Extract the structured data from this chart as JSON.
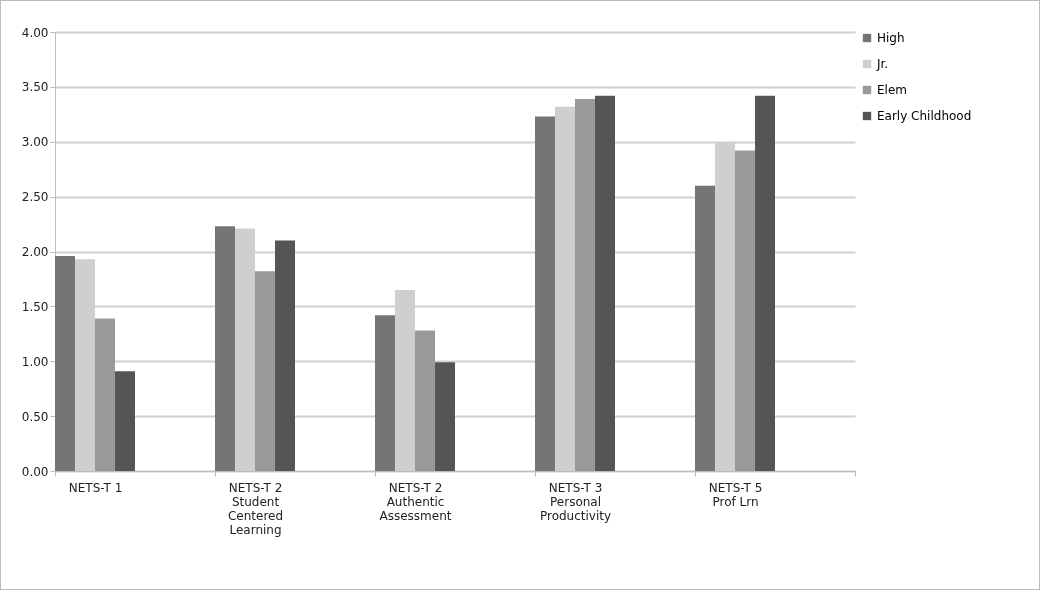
{
  "chart_data": {
    "type": "bar",
    "categories": [
      "NETS-T 1",
      "NETS-T 2\nStudent\nCentered\nLearning",
      "NETS-T 2\nAuthentic\nAssessment",
      "NETS-T 3\nPersonal\nProductivity",
      "NETS-T 5\nProf Lrn"
    ],
    "series": [
      {
        "name": "High",
        "color": "#757575",
        "values": [
          1.96,
          2.23,
          1.42,
          3.23,
          2.6
        ]
      },
      {
        "name": "Jr.",
        "color": "#cfcfcf",
        "values": [
          1.93,
          2.21,
          1.65,
          3.32,
          2.99
        ]
      },
      {
        "name": "Elem",
        "color": "#999999",
        "values": [
          1.39,
          1.82,
          1.28,
          3.39,
          2.92
        ]
      },
      {
        "name": "Early Childhood",
        "color": "#555555",
        "values": [
          0.91,
          2.1,
          0.99,
          3.42,
          3.42
        ]
      }
    ],
    "ylim": [
      0,
      4
    ],
    "yticks": [
      {
        "value": 0,
        "label": "0.00"
      },
      {
        "value": 0.5,
        "label": "0.50"
      },
      {
        "value": 1,
        "label": "1.00"
      },
      {
        "value": 1.5,
        "label": "1.50"
      },
      {
        "value": 2,
        "label": "2.00"
      },
      {
        "value": 2.5,
        "label": "2.50"
      },
      {
        "value": 3,
        "label": "3.00"
      },
      {
        "value": 3.5,
        "label": "3.50"
      },
      {
        "value": 4,
        "label": "4.00"
      }
    ],
    "grid": "y",
    "legend": "right"
  }
}
